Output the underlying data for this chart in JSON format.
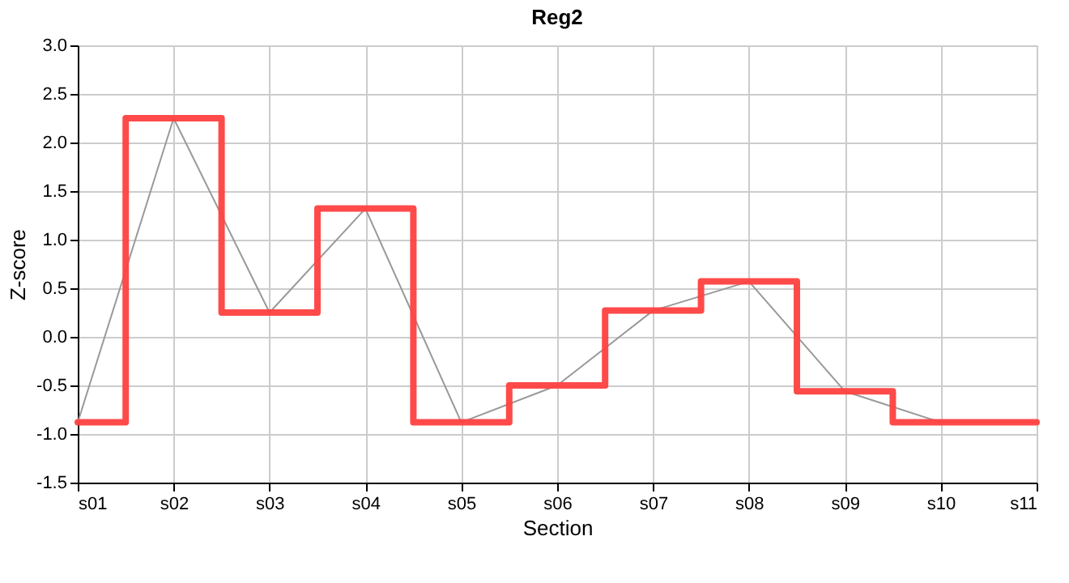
{
  "chart_data": {
    "type": "step",
    "title": "Reg2",
    "xlabel": "Section",
    "ylabel": "Z-score",
    "categories": [
      "s01",
      "s02",
      "s03",
      "s04",
      "s05",
      "s06",
      "s07",
      "s08",
      "s09",
      "s10",
      "s11"
    ],
    "series": [
      {
        "type": "line",
        "color": "#999999",
        "values": [
          -0.88,
          2.25,
          0.25,
          1.32,
          -0.88,
          -0.5,
          0.27,
          0.57,
          -0.56,
          -0.88,
          -0.88
        ]
      },
      {
        "color": "#ff4040",
        "values": [
          -0.88,
          2.25,
          0.25,
          1.32,
          -0.88,
          -0.5,
          0.27,
          0.57,
          -0.56,
          -0.88,
          -0.88
        ]
      }
    ],
    "ylim": [
      -1.5,
      3.0
    ],
    "yticks": [
      {
        "value": -1.5,
        "label": "-1.5"
      },
      {
        "value": -1.0,
        "label": "-1.0"
      },
      {
        "value": -0.5,
        "label": "-0.5"
      },
      {
        "value": 0,
        "label": "0.0"
      },
      {
        "value": 0.5,
        "label": "0.5"
      },
      {
        "value": 1.0,
        "label": "1.0"
      },
      {
        "value": 1.5,
        "label": "1.5"
      },
      {
        "value": 2.0,
        "label": "2.0"
      },
      {
        "value": 2.5,
        "label": "2.5"
      },
      {
        "value": 3.0,
        "label": "3.0"
      }
    ],
    "grid": true
  }
}
